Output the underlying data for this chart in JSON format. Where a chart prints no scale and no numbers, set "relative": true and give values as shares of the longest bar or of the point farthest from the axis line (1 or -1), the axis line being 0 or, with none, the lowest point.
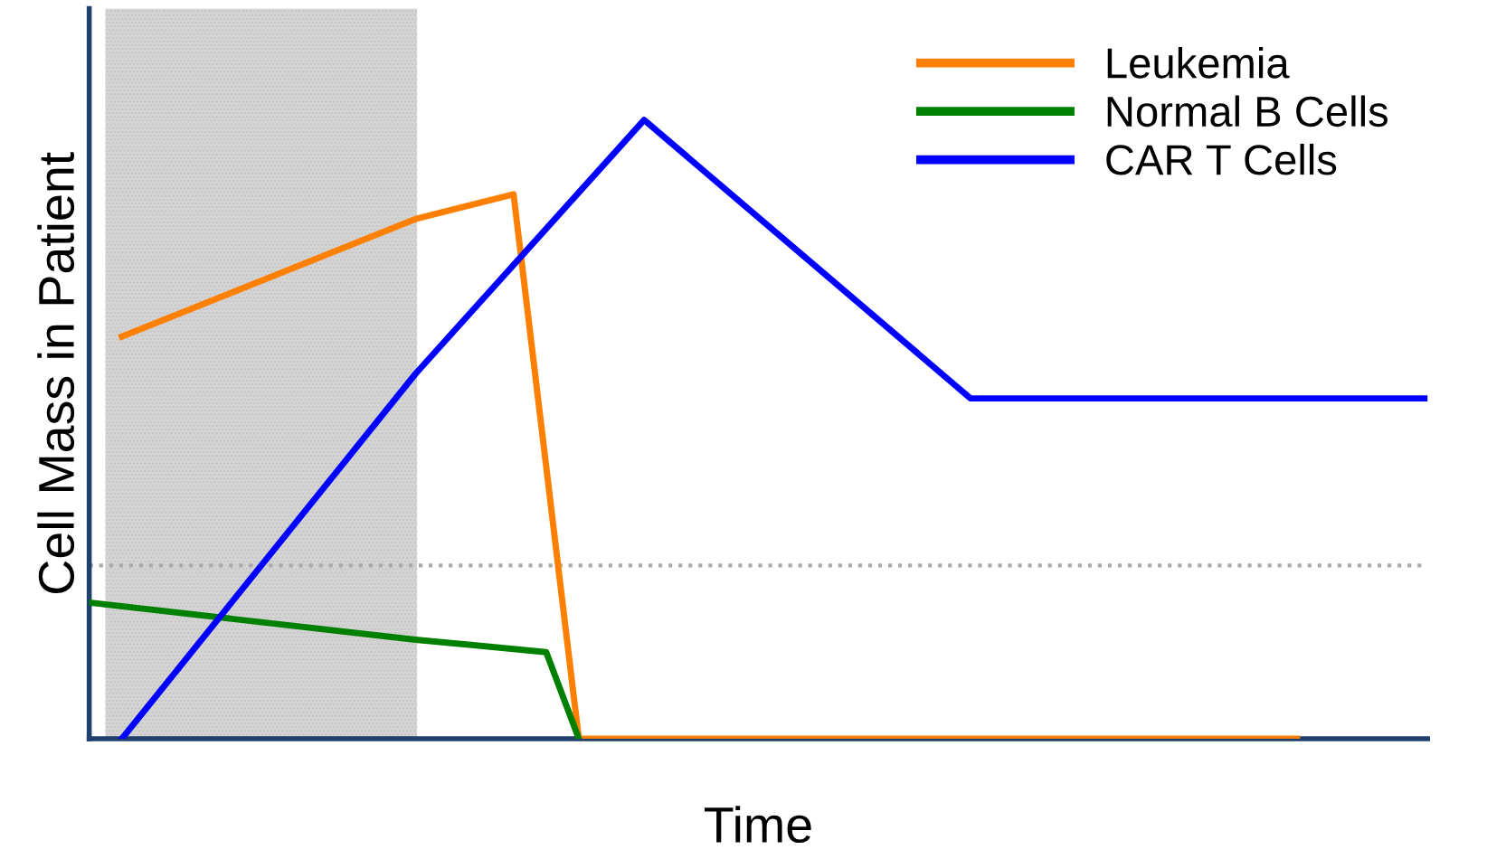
{
  "chart_data": {
    "type": "line",
    "relative": true,
    "xlabel": "Time",
    "ylabel": "Cell Mass in Patient",
    "categories": [
      null,
      null,
      null,
      null,
      null,
      null,
      null,
      null,
      null,
      null,
      null,
      null,
      null,
      null,
      null,
      null,
      null,
      null,
      null,
      null,
      null,
      null,
      null,
      null,
      null,
      null,
      null,
      null,
      null,
      null,
      null,
      null,
      null,
      null,
      null,
      null,
      null,
      null,
      null,
      null,
      null,
      null
    ],
    "legend": "top right",
    "marker": "none",
    "line_style": "solid",
    "series": [
      {
        "name": "Leukemia",
        "color": "#ff8000",
        "values": [
          null,
          0.65,
          null,
          null,
          null,
          null,
          null,
          null,
          null,
          null,
          0.84,
          null,
          null,
          0.88,
          null,
          0,
          null,
          null,
          null,
          null,
          null,
          null,
          null,
          null,
          null,
          null,
          null,
          null,
          null,
          null,
          null,
          null,
          null,
          null,
          null,
          null,
          null,
          0,
          null,
          null,
          null,
          null
        ]
      },
      {
        "name": "Normal B Cells",
        "color": "#008000",
        "values": [
          0.22,
          null,
          null,
          null,
          null,
          null,
          null,
          null,
          null,
          null,
          0.16,
          null,
          null,
          null,
          0.14,
          0,
          null,
          null,
          null,
          null,
          null,
          null,
          null,
          null,
          null,
          null,
          null,
          null,
          null,
          null,
          null,
          null,
          null,
          null,
          null,
          null,
          null,
          null,
          null,
          null,
          null,
          null
        ]
      },
      {
        "name": "CAR T Cells",
        "color": "#0000ff",
        "values": [
          null,
          0,
          null,
          null,
          null,
          null,
          null,
          null,
          null,
          null,
          0.59,
          null,
          null,
          null,
          null,
          null,
          null,
          1,
          null,
          null,
          null,
          null,
          null,
          null,
          null,
          null,
          null,
          0.55,
          null,
          null,
          null,
          null,
          null,
          null,
          null,
          null,
          null,
          null,
          null,
          null,
          null,
          0.55
        ]
      }
    ],
    "ref_lines": [
      {
        "axis": "y",
        "value": 0.28,
        "color": "#aaaaaa",
        "line_style": "dotted"
      }
    ]
  }
}
